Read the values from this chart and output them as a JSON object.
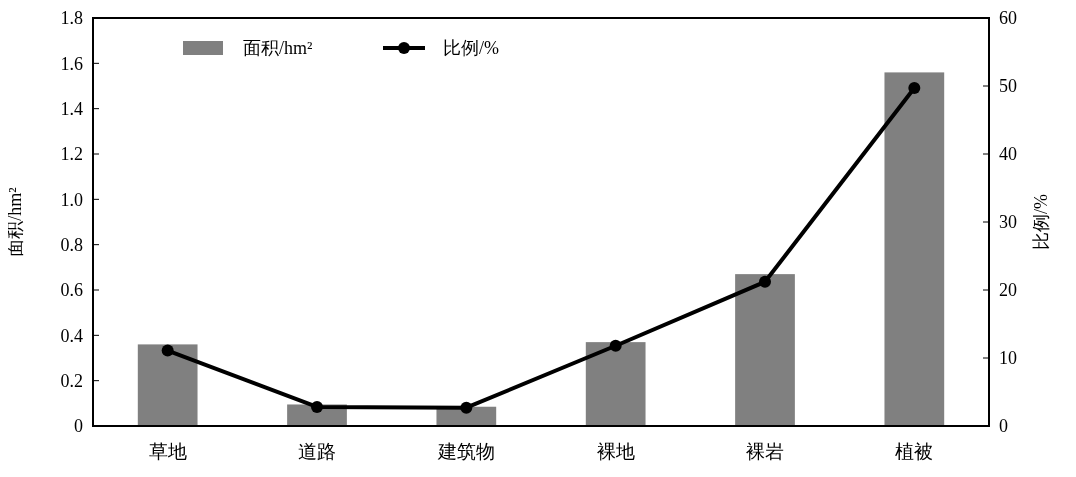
{
  "chart_data": {
    "type": "bar",
    "categories": [
      "草地",
      "道路",
      "建筑物",
      "裸地",
      "裸岩",
      "植被"
    ],
    "series": [
      {
        "name": "面积/hm²",
        "color": "#808080",
        "values": [
          0.36,
          0.095,
          0.085,
          0.37,
          0.67,
          1.56
        ]
      },
      {
        "name": "比例/%",
        "type": "line",
        "axis": "y2",
        "color": "#000000",
        "marker": "circle",
        "values": [
          11.1,
          2.8,
          2.7,
          11.8,
          21.2,
          49.7
        ]
      }
    ],
    "ylabel": "面积/hm²",
    "y2label": "比例/%",
    "ylim": [
      0,
      1.8
    ],
    "yticks": [
      0,
      0.2,
      0.4,
      0.6,
      0.8,
      {
        "value": 1,
        "label": "1.0"
      },
      1.2,
      1.4,
      1.6,
      1.8
    ],
    "y2lim": [
      0,
      60
    ],
    "y2ticks": [
      0,
      10,
      20,
      30,
      40,
      50,
      60
    ],
    "legend": "top left",
    "grid": false
  }
}
